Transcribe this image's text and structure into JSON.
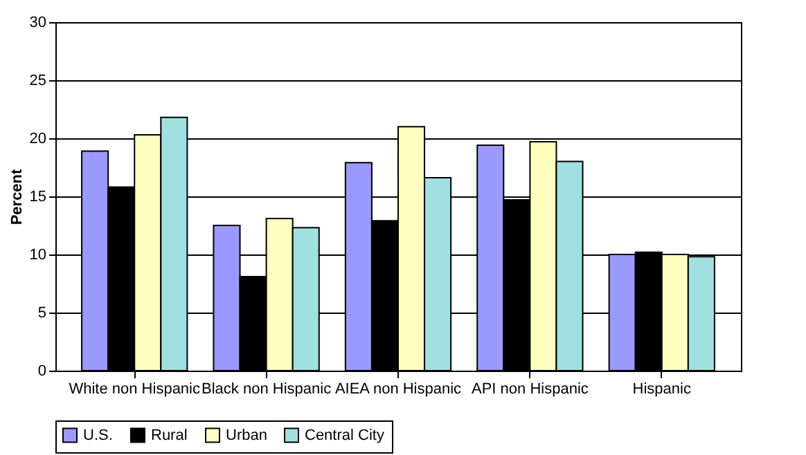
{
  "chart_data": {
    "type": "bar",
    "ylabel": "Percent",
    "categories": [
      "White non Hispanic",
      "Black non Hispanic",
      "AIEA non Hispanic",
      "API non Hispanic",
      "Hispanic"
    ],
    "series": [
      {
        "name": "U.S.",
        "color": "#9999ff",
        "values": [
          18.9,
          12.5,
          17.9,
          19.4,
          10.0
        ]
      },
      {
        "name": "Rural",
        "color": "#000000",
        "values": [
          15.8,
          8.1,
          12.9,
          14.7,
          10.2
        ]
      },
      {
        "name": "Urban",
        "color": "#ffffc0",
        "values": [
          20.3,
          13.1,
          21.0,
          19.7,
          10.0
        ]
      },
      {
        "name": "Central City",
        "color": "#a0e0e0",
        "values": [
          21.8,
          12.3,
          16.6,
          18.0,
          9.8
        ]
      }
    ],
    "ylim": [
      0,
      30
    ],
    "yticks": [
      0,
      5,
      10,
      15,
      20,
      25,
      30
    ],
    "grid": "y",
    "legend": "bottom"
  }
}
